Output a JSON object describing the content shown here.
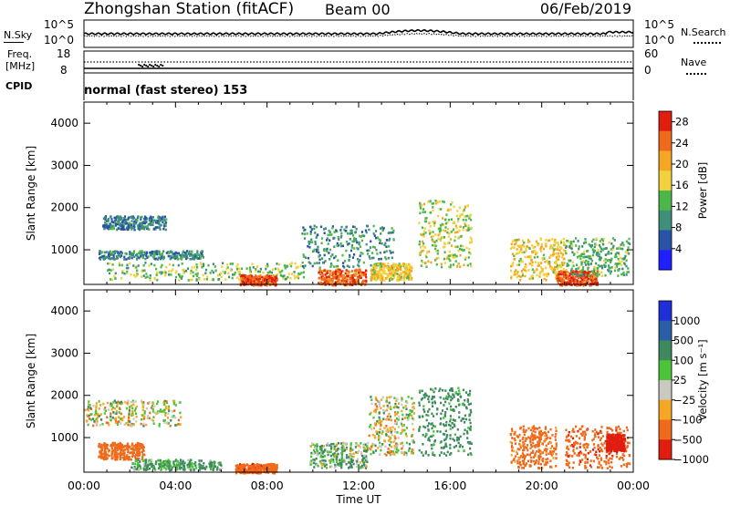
{
  "header": {
    "title": "Zhongshan Station (fitACF)",
    "beam": "Beam 00",
    "date": "06/Feb/2019"
  },
  "panels": {
    "sky": {
      "left_label": "N.Sky",
      "right_label": "N.Search",
      "left_ticks": [
        "10^5",
        "10^0"
      ],
      "right_ticks": [
        "10^5",
        "10^0"
      ]
    },
    "freq": {
      "left_label_1": "Freq.",
      "left_label_2": "[MHz]",
      "right_label": "Nave",
      "left_ticks": [
        "18",
        "8"
      ],
      "right_ticks": [
        "60",
        "0"
      ]
    },
    "cpid": {
      "label": "CPID",
      "value": "normal (fast stereo) 153"
    }
  },
  "chart_data": [
    {
      "type": "heatmap",
      "title": "",
      "xlabel": "Time UT",
      "ylabel": "Slant Range [km]",
      "x_ticks": [
        "00:00",
        "04:00",
        "08:00",
        "12:00",
        "16:00",
        "20:00",
        "00:00"
      ],
      "y_ticks": [
        "1000",
        "2000",
        "3000",
        "4000"
      ],
      "xlim": [
        "00:00",
        "24:00"
      ],
      "ylim": [
        180,
        4500
      ],
      "colorbar": {
        "label": "Power [dB]",
        "ticks": [
          "4",
          "8",
          "12",
          "16",
          "20",
          "24",
          "28"
        ],
        "range": [
          0,
          30
        ],
        "colors": [
          "#1f1fff",
          "#2a53a8",
          "#3f8f7a",
          "#4cb84c",
          "#f2d23c",
          "#f5a623",
          "#ef6a1a",
          "#e01e10"
        ]
      },
      "regions": [
        {
          "t": [
            0.8,
            3.6
          ],
          "r": [
            1500,
            1820
          ],
          "value": 8
        },
        {
          "t": [
            0.6,
            5.2
          ],
          "r": [
            800,
            1000
          ],
          "value": 9
        },
        {
          "t": [
            1.0,
            9.6
          ],
          "r": [
            300,
            720
          ],
          "value": 14
        },
        {
          "t": [
            6.8,
            8.4
          ],
          "r": [
            180,
            420
          ],
          "value": 26
        },
        {
          "t": [
            9.5,
            13.5
          ],
          "r": [
            600,
            1600
          ],
          "value": 10
        },
        {
          "t": [
            10.2,
            12.3
          ],
          "r": [
            180,
            560
          ],
          "value": 25
        },
        {
          "t": [
            12.5,
            14.3
          ],
          "r": [
            300,
            700
          ],
          "value": 18
        },
        {
          "t": [
            14.6,
            16.9
          ],
          "r": [
            600,
            2200
          ],
          "value": 16
        },
        {
          "t": [
            18.6,
            21.0
          ],
          "r": [
            300,
            1300
          ],
          "value": 18
        },
        {
          "t": [
            20.6,
            22.4
          ],
          "r": [
            180,
            520
          ],
          "value": 26
        },
        {
          "t": [
            21.0,
            23.8
          ],
          "r": [
            400,
            1300
          ],
          "value": 12
        }
      ]
    },
    {
      "type": "heatmap",
      "title": "",
      "xlabel": "Time UT",
      "ylabel": "Slant Range [km]",
      "x_ticks": [
        "00:00",
        "04:00",
        "08:00",
        "12:00",
        "16:00",
        "20:00",
        "00:00"
      ],
      "y_ticks": [
        "1000",
        "2000",
        "3000",
        "4000"
      ],
      "xlim": [
        "00:00",
        "24:00"
      ],
      "ylim": [
        180,
        4500
      ],
      "colorbar": {
        "label": "Velocity [m s^-1]",
        "ticks": [
          "1000",
          "500",
          "100",
          "25",
          "-25",
          "-100",
          "-500",
          "-1000"
        ],
        "colors": [
          "#1f2fd8",
          "#2a5fa8",
          "#3e8a5e",
          "#4cc43a",
          "#c9c9c2",
          "#f5a623",
          "#ef6a1a",
          "#e01e10"
        ]
      },
      "regions": [
        {
          "t": [
            0.0,
            4.2
          ],
          "r": [
            1300,
            1900
          ],
          "value": 0
        },
        {
          "t": [
            0.6,
            2.6
          ],
          "r": [
            500,
            900
          ],
          "value": -300
        },
        {
          "t": [
            2.0,
            6.0
          ],
          "r": [
            250,
            500
          ],
          "value": 120
        },
        {
          "t": [
            6.6,
            8.4
          ],
          "r": [
            180,
            400
          ],
          "value": -400
        },
        {
          "t": [
            9.8,
            12.4
          ],
          "r": [
            300,
            900
          ],
          "value": 80
        },
        {
          "t": [
            12.4,
            14.4
          ],
          "r": [
            600,
            2000
          ],
          "value": 5
        },
        {
          "t": [
            14.6,
            16.9
          ],
          "r": [
            600,
            2200
          ],
          "value": 200
        },
        {
          "t": [
            18.6,
            20.6
          ],
          "r": [
            300,
            1300
          ],
          "value": -200
        },
        {
          "t": [
            21.0,
            23.8
          ],
          "r": [
            300,
            1300
          ],
          "value": -400
        },
        {
          "t": [
            22.8,
            23.6
          ],
          "r": [
            700,
            1100
          ],
          "value": -900
        }
      ]
    }
  ]
}
